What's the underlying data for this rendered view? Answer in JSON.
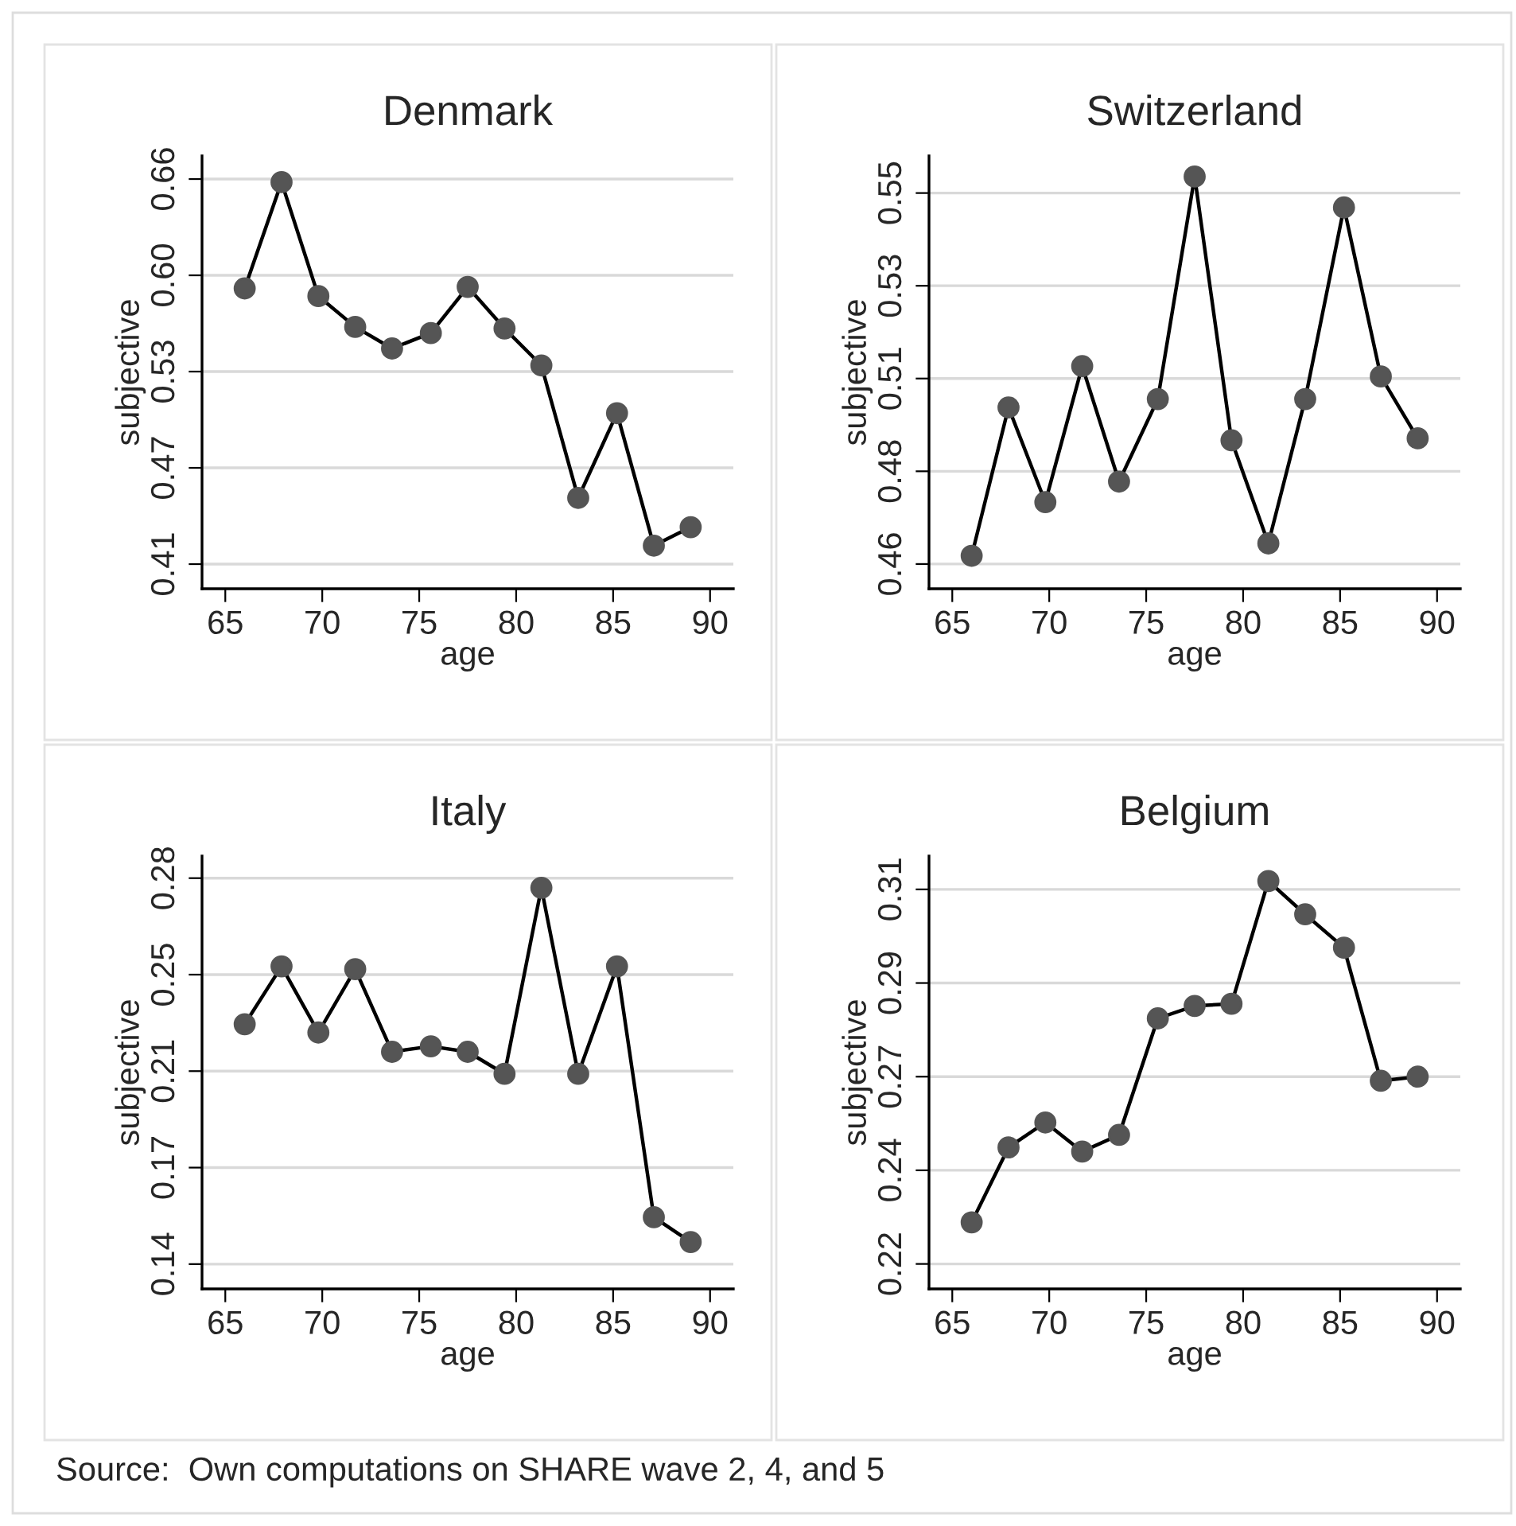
{
  "chart_data": [
    {
      "type": "line",
      "title": "Denmark",
      "xlabel": "age",
      "ylabel": "subjective",
      "x": [
        66.0,
        67.9,
        69.8,
        71.7,
        73.6,
        75.6,
        77.5,
        79.4,
        81.3,
        83.2,
        85.2,
        87.1,
        89.0
      ],
      "series": [
        {
          "color": "#555555",
          "values": [
            0.589,
            0.658,
            0.584,
            0.564,
            0.55,
            0.56,
            0.59,
            0.563,
            0.539,
            0.453,
            0.508,
            0.422,
            0.434
          ]
        }
      ],
      "xlim": [
        63.8,
        91.2
      ],
      "xticks": [
        65,
        70,
        75,
        80,
        85,
        90
      ],
      "ylim": [
        0.394,
        0.675
      ],
      "yticks": [
        {
          "value": 0.41,
          "label": "0.41"
        },
        {
          "value": 0.4725,
          "label": "0.47"
        },
        {
          "value": 0.535,
          "label": "0.53"
        },
        {
          "value": 0.5975,
          "label": "0.60"
        },
        {
          "value": 0.66,
          "label": "0.66"
        }
      ],
      "grid": "y",
      "marker": "circle",
      "line_style": "solid"
    },
    {
      "type": "line",
      "title": "Switzerland",
      "xlabel": "age",
      "ylabel": "subjective",
      "x": [
        66.0,
        67.9,
        69.8,
        71.7,
        73.6,
        75.6,
        77.5,
        79.4,
        81.3,
        83.2,
        85.2,
        87.1,
        89.0
      ],
      "series": [
        {
          "color": "#555555",
          "values": [
            0.462,
            0.498,
            0.475,
            0.508,
            0.48,
            0.5,
            0.554,
            0.49,
            0.465,
            0.5,
            0.5465,
            0.5055,
            0.4905
          ]
        }
      ],
      "xlim": [
        63.8,
        91.2
      ],
      "xticks": [
        65,
        70,
        75,
        80,
        85,
        90
      ],
      "ylim": [
        0.454,
        0.559
      ],
      "yticks": [
        {
          "value": 0.46,
          "label": "0.46"
        },
        {
          "value": 0.4825,
          "label": "0.48"
        },
        {
          "value": 0.505,
          "label": "0.51"
        },
        {
          "value": 0.5275,
          "label": "0.53"
        },
        {
          "value": 0.55,
          "label": "0.55"
        }
      ],
      "grid": "y",
      "marker": "circle",
      "line_style": "solid"
    },
    {
      "type": "line",
      "title": "Italy",
      "xlabel": "age",
      "ylabel": "subjective",
      "x": [
        66.0,
        67.9,
        69.8,
        71.7,
        73.6,
        75.6,
        77.5,
        79.4,
        81.3,
        83.2,
        85.2,
        87.1,
        89.0
      ],
      "series": [
        {
          "color": "#555555",
          "values": [
            0.227,
            0.248,
            0.224,
            0.247,
            0.217,
            0.219,
            0.217,
            0.209,
            0.2765,
            0.209,
            0.248,
            0.157,
            0.148
          ]
        }
      ],
      "xlim": [
        63.8,
        91.2
      ],
      "xticks": [
        65,
        70,
        75,
        80,
        85,
        90
      ],
      "ylim": [
        0.131,
        0.288
      ],
      "yticks": [
        {
          "value": 0.14,
          "label": "0.14"
        },
        {
          "value": 0.175,
          "label": "0.17"
        },
        {
          "value": 0.21,
          "label": "0.21"
        },
        {
          "value": 0.245,
          "label": "0.25"
        },
        {
          "value": 0.28,
          "label": "0.28"
        }
      ],
      "grid": "y",
      "marker": "circle",
      "line_style": "solid"
    },
    {
      "type": "line",
      "title": "Belgium",
      "xlabel": "age",
      "ylabel": "subjective",
      "x": [
        66.0,
        67.9,
        69.8,
        71.7,
        73.6,
        75.6,
        77.5,
        79.4,
        81.3,
        83.2,
        85.2,
        87.1,
        89.0
      ],
      "series": [
        {
          "color": "#555555",
          "values": [
            0.23,
            0.248,
            0.254,
            0.247,
            0.251,
            0.279,
            0.282,
            0.2825,
            0.312,
            0.304,
            0.296,
            0.264,
            0.265
          ]
        }
      ],
      "xlim": [
        63.8,
        91.2
      ],
      "xticks": [
        65,
        70,
        75,
        80,
        85,
        90
      ],
      "ylim": [
        0.214,
        0.318
      ],
      "yticks": [
        {
          "value": 0.22,
          "label": "0.22"
        },
        {
          "value": 0.2425,
          "label": "0.24"
        },
        {
          "value": 0.265,
          "label": "0.27"
        },
        {
          "value": 0.2875,
          "label": "0.29"
        },
        {
          "value": 0.31,
          "label": "0.31"
        }
      ],
      "grid": "y",
      "marker": "circle",
      "line_style": "solid",
      "annotations": [
        "Source:  Own computations on SHARE wave 2, 4, and 5"
      ]
    }
  ]
}
